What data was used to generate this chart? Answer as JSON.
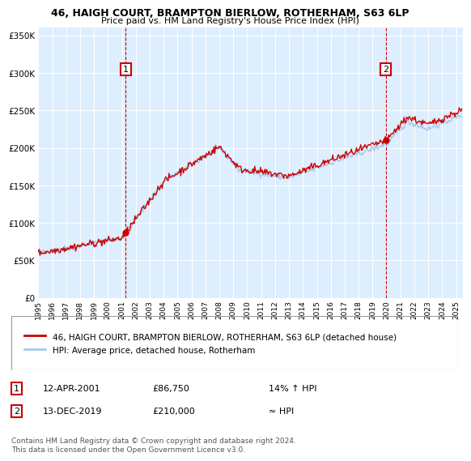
{
  "title1": "46, HAIGH COURT, BRAMPTON BIERLOW, ROTHERHAM, S63 6LP",
  "title2": "Price paid vs. HM Land Registry's House Price Index (HPI)",
  "legend_line1": "46, HAIGH COURT, BRAMPTON BIERLOW, ROTHERHAM, S63 6LP (detached house)",
  "legend_line2": "HPI: Average price, detached house, Rotherham",
  "sale1_date": "12-APR-2001",
  "sale1_price": "£86,750",
  "sale1_hpi": "14% ↑ HPI",
  "sale1_x": 2001.28,
  "sale1_y": 86750,
  "sale2_date": "13-DEC-2019",
  "sale2_price": "£210,000",
  "sale2_hpi": "≈ HPI",
  "sale2_x": 2019.95,
  "sale2_y": 210000,
  "hpi_color": "#aac8e8",
  "price_color": "#cc0000",
  "marker_color": "#cc0000",
  "bg_color": "#ddeeff",
  "grid_color": "#ffffff",
  "box_color": "#cc0000",
  "ylim": [
    0,
    360000
  ],
  "xlim_start": 1995.0,
  "xlim_end": 2025.5,
  "footnote": "Contains HM Land Registry data © Crown copyright and database right 2024.\nThis data is licensed under the Open Government Licence v3.0."
}
